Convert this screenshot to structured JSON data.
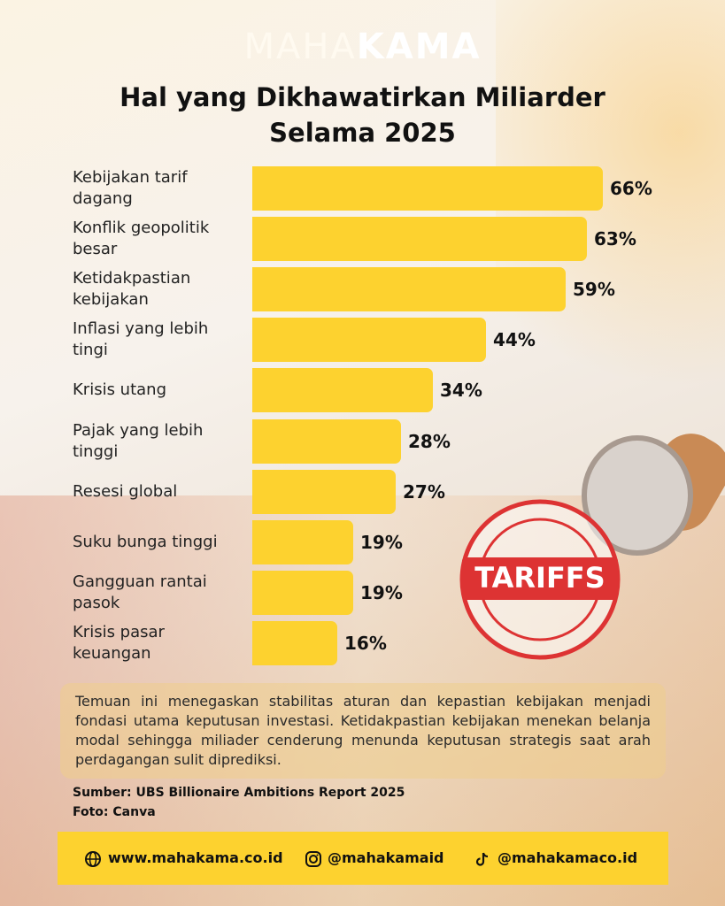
{
  "logo": [
    "MAHA",
    "KAMA"
  ],
  "chart_data": {
    "type": "bar",
    "orientation": "horizontal",
    "title": "Hal yang Dikhawatirkan Miliarder Selama 2025",
    "categories": [
      "Kebijakan tarif dagang",
      "Konflik geopolitik besar",
      "Ketidakpastian kebijakan",
      "Inflasi yang lebih tingi",
      "Krisis utang",
      "Pajak yang lebih tinggi",
      "Resesi global",
      "Suku bunga tinggi",
      "Gangguan rantai pasok",
      "Krisis pasar keuangan"
    ],
    "values": [
      66,
      63,
      59,
      44,
      34,
      28,
      27,
      19,
      19,
      16
    ],
    "value_labels": [
      "66%",
      "63%",
      "59%",
      "44%",
      "34%",
      "28%",
      "27%",
      "19%",
      "19%",
      "16%"
    ],
    "color": "#fdd22f"
  },
  "stamp_text": "TARIFFS",
  "note": "Temuan ini menegaskan stabilitas aturan dan kepastian kebijakan menjadi fondasi utama keputusan investasi. Ketidakpastian kebijakan menekan belanja modal sehingga miliader cenderung menunda keputusan strategis saat arah perdagangan sulit diprediksi.",
  "source": "Sumber: UBS Billionaire Ambitions Report 2025",
  "photo_credit": "Foto: Canva",
  "footer": [
    "www.mahakama.co.id",
    "@mahakamaid",
    "@mahakamaco.id"
  ]
}
